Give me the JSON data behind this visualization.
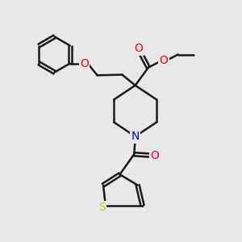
{
  "bg_color": "#e8e8e8",
  "bond_color": "#1a1a1a",
  "bond_width": 1.8,
  "atom_colors": {
    "O": "#ff0000",
    "N": "#0000cc",
    "S": "#cccc00",
    "C": "#1a1a1a"
  },
  "font_size_atom": 10
}
